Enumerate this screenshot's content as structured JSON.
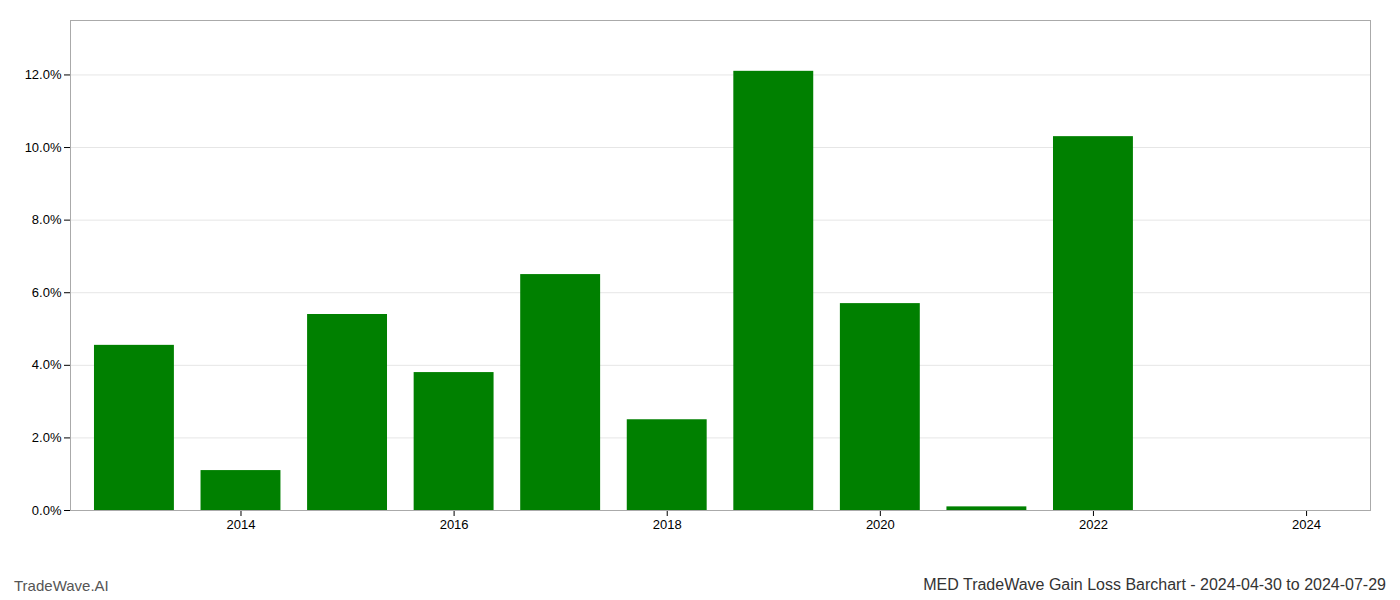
{
  "chart_data": {
    "type": "bar",
    "title": "MED TradeWave Gain Loss Barchart - 2024-04-30 to 2024-07-29",
    "annotations": [
      "TradeWave.AI"
    ],
    "x": [
      2013,
      2014,
      2015,
      2016,
      2017,
      2018,
      2019,
      2020,
      2021,
      2022,
      2023
    ],
    "values": [
      0.0455,
      0.011,
      0.054,
      0.038,
      0.065,
      0.025,
      0.121,
      0.057,
      0.001,
      0.103,
      0.0
    ],
    "color": "#008000",
    "xlim": [
      2012.4,
      2024.6
    ],
    "xticks": [
      2014,
      2016,
      2018,
      2020,
      2022,
      2024
    ],
    "ylim": [
      0,
      0.135
    ],
    "yticks": [
      {
        "value": 0.0,
        "label": "0.0%"
      },
      {
        "value": 0.02,
        "label": "2.0%"
      },
      {
        "value": 0.04,
        "label": "4.0%"
      },
      {
        "value": 0.06,
        "label": "6.0%"
      },
      {
        "value": 0.08,
        "label": "8.0%"
      },
      {
        "value": 0.1,
        "label": "10.0%"
      },
      {
        "value": 0.12,
        "label": "12.0%"
      }
    ],
    "grid": true
  }
}
